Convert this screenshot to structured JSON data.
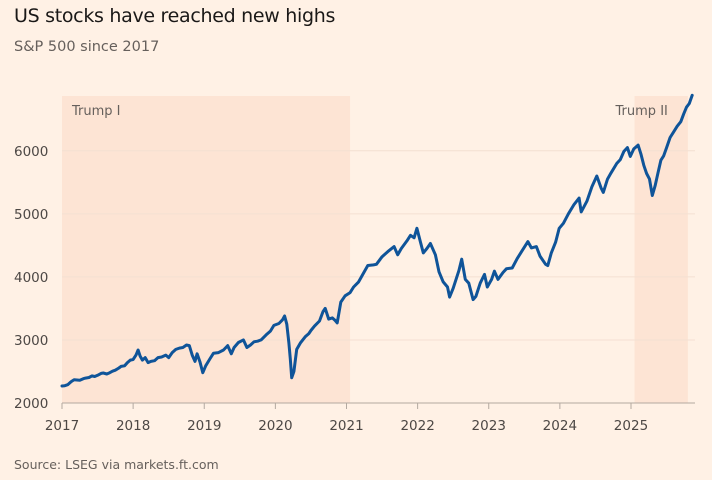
{
  "title": "US stocks have reached new highs",
  "subtitle": "S&P 500 since 2017",
  "source": "Source: LSEG via markets.ft.com",
  "colors": {
    "background": "#fff1e5",
    "line": "#0f5499",
    "shade": "#fde4d4",
    "text": "#66605c"
  },
  "chart_data": {
    "type": "line",
    "title": "US stocks have reached new highs",
    "subtitle": "S&P 500 since 2017",
    "xlabel": "",
    "ylabel": "",
    "xlim": [
      2017,
      2025.9
    ],
    "ylim": [
      2000,
      6900
    ],
    "grid": true,
    "x_ticks": [
      2017,
      2018,
      2019,
      2020,
      2021,
      2022,
      2023,
      2024,
      2025
    ],
    "x_tick_labels": [
      "2017",
      "2018",
      "2019",
      "2020",
      "2021",
      "2022",
      "2023",
      "2024",
      "2025"
    ],
    "y_ticks": [
      2000,
      3000,
      4000,
      5000,
      6000
    ],
    "y_tick_labels": [
      "2000",
      "3000",
      "4000",
      "5000",
      "6000"
    ],
    "annotations": [
      {
        "label": "Trump I",
        "start": 2017.0,
        "end": 2021.05
      },
      {
        "label": "Trump II",
        "start": 2025.05,
        "end": 2025.8
      }
    ],
    "series": [
      {
        "name": "S&P 500",
        "x": [
          2017.0,
          2017.04,
          2017.08,
          2017.13,
          2017.17,
          2017.21,
          2017.25,
          2017.3,
          2017.33,
          2017.38,
          2017.42,
          2017.46,
          2017.5,
          2017.55,
          2017.58,
          2017.63,
          2017.67,
          2017.71,
          2017.75,
          2017.8,
          2017.83,
          2017.88,
          2017.92,
          2017.96,
          2018.0,
          2018.04,
          2018.07,
          2018.1,
          2018.13,
          2018.17,
          2018.21,
          2018.25,
          2018.3,
          2018.35,
          2018.4,
          2018.46,
          2018.5,
          2018.55,
          2018.6,
          2018.65,
          2018.7,
          2018.75,
          2018.79,
          2018.83,
          2018.87,
          2018.9,
          2018.94,
          2018.98,
          2019.02,
          2019.08,
          2019.13,
          2019.2,
          2019.27,
          2019.33,
          2019.38,
          2019.42,
          2019.48,
          2019.55,
          2019.6,
          2019.65,
          2019.7,
          2019.75,
          2019.8,
          2019.87,
          2019.93,
          2019.98,
          2020.05,
          2020.1,
          2020.13,
          2020.16,
          2020.19,
          2020.21,
          2020.23,
          2020.26,
          2020.3,
          2020.35,
          2020.42,
          2020.47,
          2020.5,
          2020.55,
          2020.62,
          2020.67,
          2020.7,
          2020.75,
          2020.8,
          2020.84,
          2020.87,
          2020.92,
          2020.98,
          2021.05,
          2021.1,
          2021.17,
          2021.22,
          2021.3,
          2021.38,
          2021.42,
          2021.5,
          2021.58,
          2021.67,
          2021.72,
          2021.77,
          2021.85,
          2021.9,
          2021.95,
          2021.99,
          2022.04,
          2022.08,
          2022.13,
          2022.18,
          2022.25,
          2022.3,
          2022.36,
          2022.42,
          2022.45,
          2022.5,
          2022.58,
          2022.62,
          2022.67,
          2022.72,
          2022.78,
          2022.82,
          2022.88,
          2022.94,
          2022.98,
          2023.04,
          2023.08,
          2023.13,
          2023.2,
          2023.25,
          2023.33,
          2023.4,
          2023.46,
          2023.55,
          2023.6,
          2023.67,
          2023.72,
          2023.8,
          2023.83,
          2023.88,
          2023.94,
          2023.99,
          2024.05,
          2024.12,
          2024.2,
          2024.27,
          2024.3,
          2024.38,
          2024.45,
          2024.52,
          2024.58,
          2024.61,
          2024.67,
          2024.72,
          2024.8,
          2024.85,
          2024.9,
          2024.95,
          2024.99,
          2025.04,
          2025.1,
          2025.14,
          2025.18,
          2025.22,
          2025.26,
          2025.3,
          2025.34,
          2025.38,
          2025.42,
          2025.46,
          2025.5,
          2025.55,
          2025.6,
          2025.65,
          2025.7,
          2025.74,
          2025.78,
          2025.82,
          2025.86
        ],
        "values": [
          2270,
          2275,
          2290,
          2340,
          2370,
          2365,
          2360,
          2385,
          2395,
          2405,
          2430,
          2420,
          2440,
          2470,
          2475,
          2460,
          2480,
          2505,
          2520,
          2555,
          2580,
          2590,
          2640,
          2680,
          2690,
          2760,
          2840,
          2740,
          2680,
          2720,
          2640,
          2660,
          2670,
          2720,
          2730,
          2760,
          2720,
          2800,
          2850,
          2870,
          2880,
          2920,
          2910,
          2760,
          2660,
          2780,
          2650,
          2480,
          2590,
          2700,
          2790,
          2800,
          2840,
          2910,
          2780,
          2880,
          2960,
          3000,
          2880,
          2920,
          2970,
          2980,
          3000,
          3080,
          3140,
          3230,
          3260,
          3320,
          3380,
          3250,
          2950,
          2700,
          2400,
          2500,
          2850,
          2950,
          3050,
          3100,
          3150,
          3220,
          3300,
          3450,
          3500,
          3330,
          3350,
          3310,
          3270,
          3600,
          3700,
          3750,
          3840,
          3920,
          4020,
          4180,
          4190,
          4200,
          4320,
          4400,
          4480,
          4350,
          4450,
          4570,
          4660,
          4620,
          4770,
          4550,
          4380,
          4450,
          4530,
          4350,
          4080,
          3920,
          3840,
          3680,
          3820,
          4100,
          4280,
          3960,
          3900,
          3640,
          3690,
          3900,
          4040,
          3840,
          3960,
          4090,
          3960,
          4070,
          4130,
          4140,
          4290,
          4400,
          4560,
          4460,
          4480,
          4330,
          4200,
          4180,
          4380,
          4550,
          4770,
          4850,
          5000,
          5150,
          5250,
          5030,
          5200,
          5430,
          5600,
          5410,
          5340,
          5550,
          5650,
          5800,
          5860,
          5990,
          6050,
          5910,
          6030,
          6090,
          5950,
          5770,
          5640,
          5550,
          5290,
          5450,
          5650,
          5850,
          5920,
          6050,
          6210,
          6300,
          6390,
          6460,
          6580,
          6690,
          6750,
          6880
        ]
      }
    ]
  }
}
